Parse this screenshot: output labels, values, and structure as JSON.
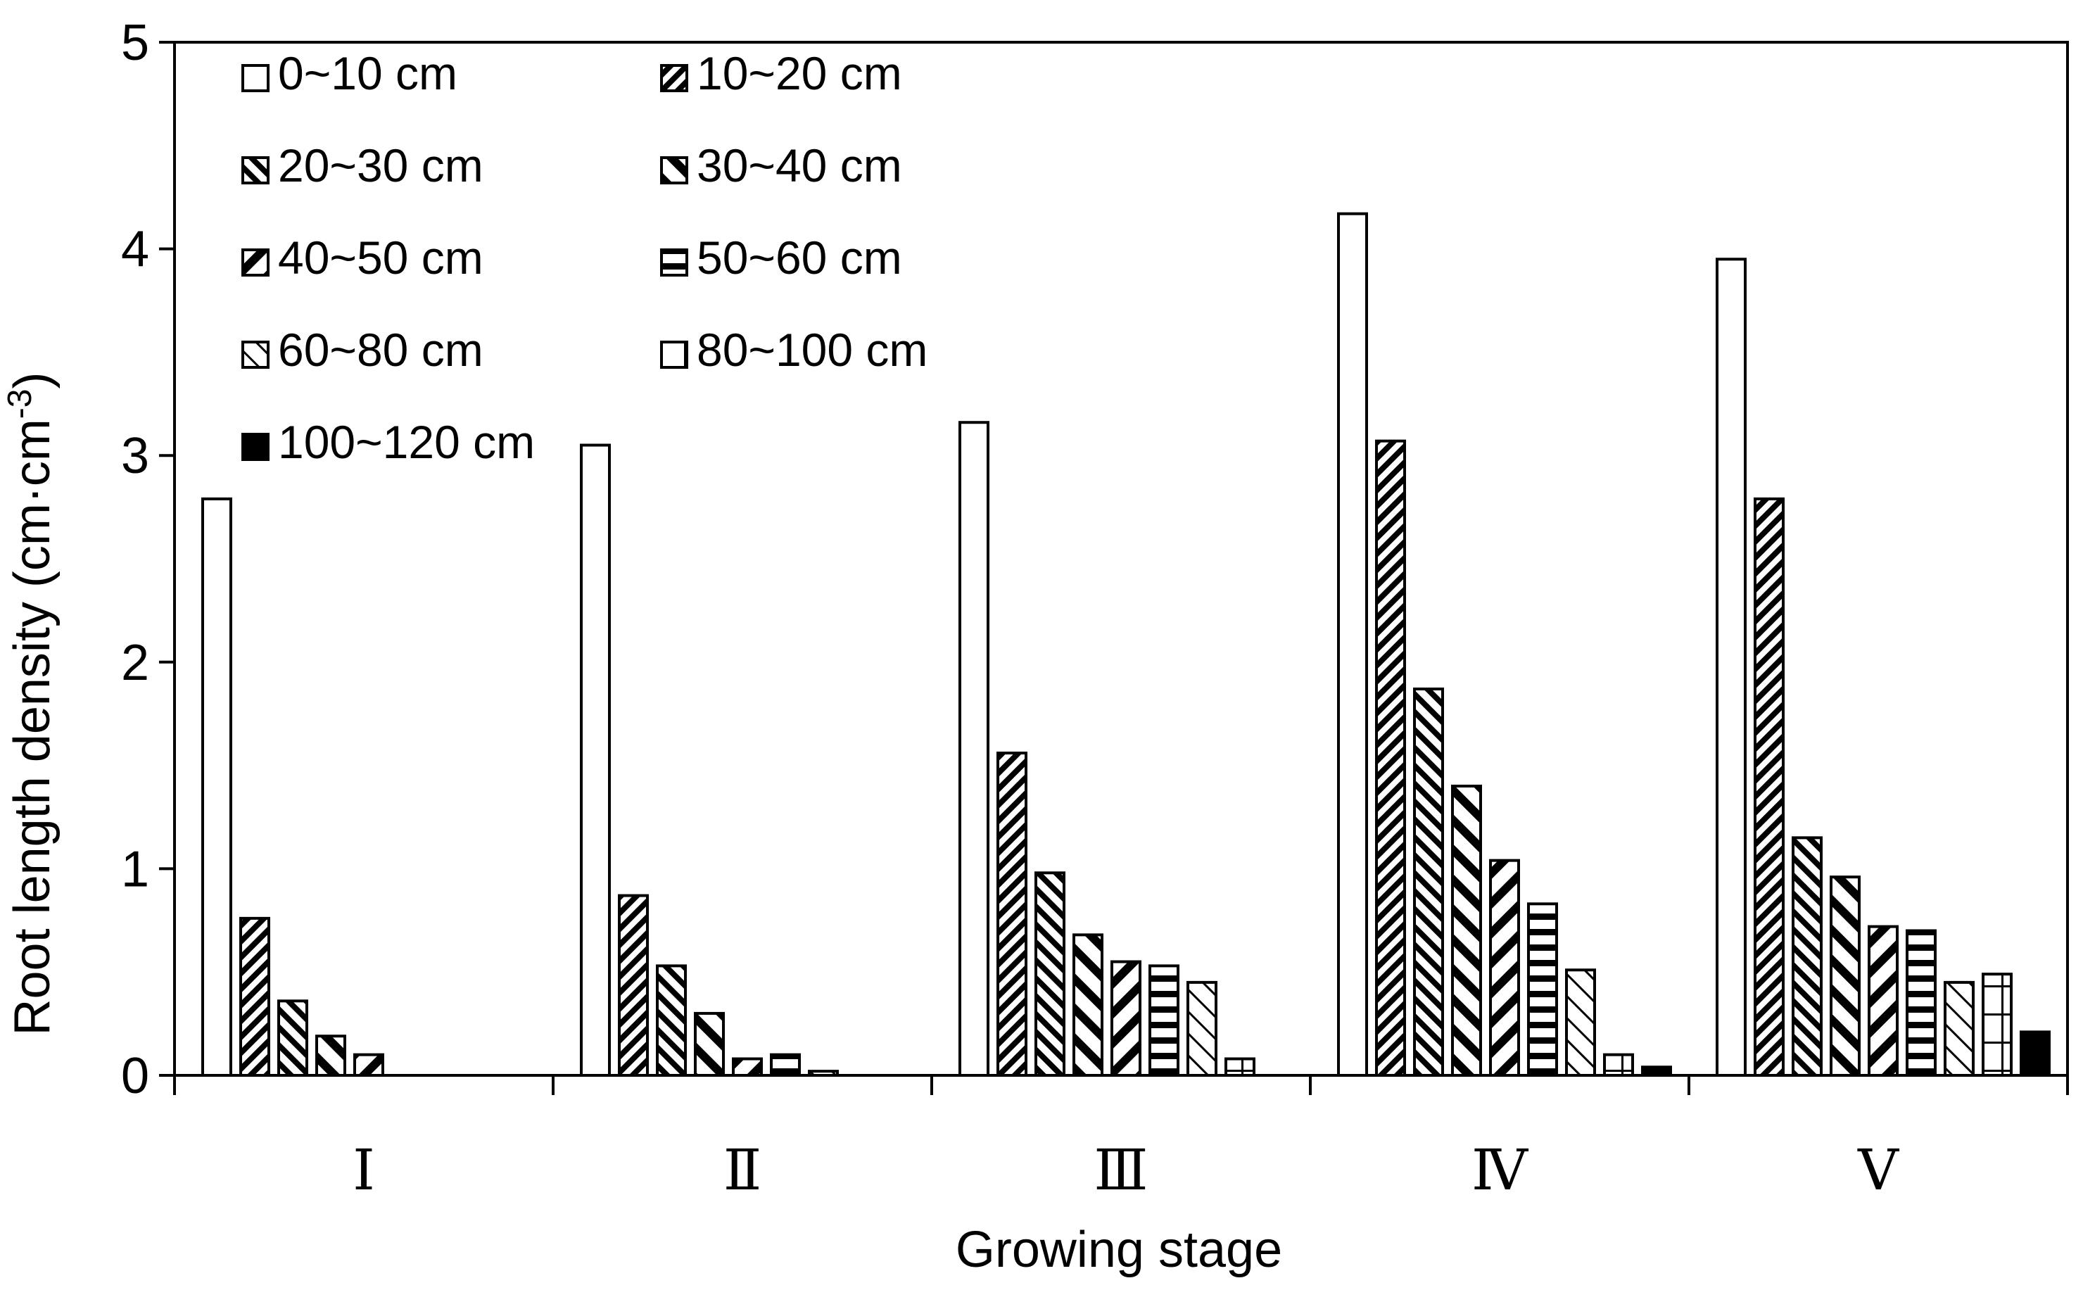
{
  "chart_data": {
    "type": "bar",
    "title": "",
    "xlabel": "Growing stage",
    "ylabel": "Root length density (cm·cm",
    "ylabel_sup": "-3",
    "ylabel_tail": ")",
    "ylim": [
      0,
      5
    ],
    "yticks": [
      "0",
      "1",
      "2",
      "3",
      "4",
      "5"
    ],
    "categories": [
      "Ⅰ",
      "Ⅱ",
      "Ⅲ",
      "Ⅳ",
      "Ⅴ"
    ],
    "legend_position": "top-left",
    "series": [
      {
        "name": "0~10 cm",
        "pattern": "white",
        "values": [
          2.79,
          3.05,
          3.16,
          4.17,
          3.95
        ]
      },
      {
        "name": "10~20 cm",
        "pattern": "diag-dense",
        "values": [
          0.76,
          0.87,
          1.56,
          3.07,
          2.79
        ]
      },
      {
        "name": "20~30 cm",
        "pattern": "diag-right",
        "values": [
          0.36,
          0.53,
          0.98,
          1.87,
          1.15
        ]
      },
      {
        "name": "30~40 cm",
        "pattern": "diag-wide",
        "values": [
          0.19,
          0.3,
          0.68,
          1.4,
          0.96
        ]
      },
      {
        "name": "40~50 cm",
        "pattern": "diag-left",
        "values": [
          0.1,
          0.08,
          0.55,
          1.04,
          0.72
        ]
      },
      {
        "name": "50~60 cm",
        "pattern": "hlines",
        "values": [
          0.0,
          0.1,
          0.53,
          0.83,
          0.7
        ]
      },
      {
        "name": "60~80 cm",
        "pattern": "diag-light",
        "values": [
          0.0,
          0.02,
          0.45,
          0.51,
          0.45
        ]
      },
      {
        "name": "80~100 cm",
        "pattern": "grid",
        "values": [
          0.0,
          0.0,
          0.08,
          0.1,
          0.49
        ]
      },
      {
        "name": "100~120 cm",
        "pattern": "black",
        "values": [
          0.0,
          0.0,
          0.0,
          0.04,
          0.21
        ]
      }
    ]
  }
}
